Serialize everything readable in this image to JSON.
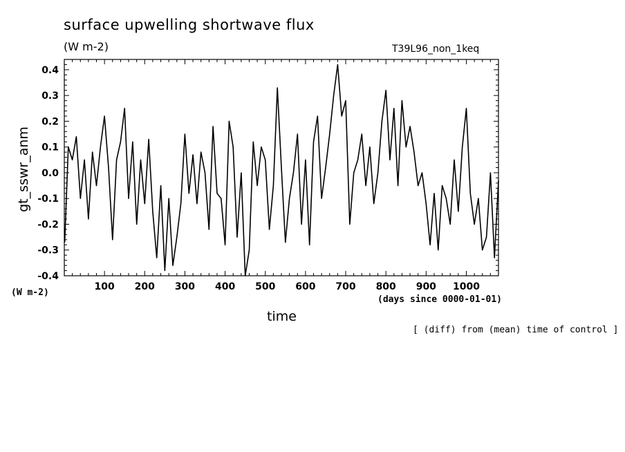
{
  "chart_data": {
    "type": "line",
    "title": "surface upwelling shortwave flux",
    "units": "(W m-2)",
    "experiment": "T39L96_non_1keq",
    "ylabel": "gt_sswr_anm",
    "y_unit_label": "(W m-2)",
    "xlabel": "time",
    "x_unit_label": "(days since 0000-01-01)",
    "note": "[ (diff) from (mean) time of control ]",
    "xlim": [
      0,
      1080
    ],
    "ylim": [
      -0.4,
      0.44
    ],
    "x_ticks": [
      100,
      200,
      300,
      400,
      500,
      600,
      700,
      800,
      900,
      1000
    ],
    "y_ticks": [
      -0.4,
      -0.3,
      -0.2,
      -0.1,
      0.0,
      0.1,
      0.2,
      0.3,
      0.4
    ],
    "y_tick_labels": [
      "-0.4",
      "-0.3",
      "-0.2",
      "-0.1",
      "0.0",
      "0.1",
      "0.2",
      "0.3",
      "0.4"
    ],
    "grid": false,
    "series": [
      {
        "x": [
          1,
          10,
          20,
          30,
          40,
          50,
          60,
          70,
          80,
          90,
          100,
          110,
          120,
          130,
          140,
          150,
          160,
          170,
          180,
          190,
          200,
          210,
          220,
          230,
          240,
          250,
          260,
          270,
          280,
          290,
          300,
          310,
          320,
          330,
          340,
          350,
          360,
          370,
          380,
          390,
          400,
          410,
          420,
          430,
          440,
          450,
          460,
          470,
          480,
          490,
          500,
          510,
          520,
          530,
          540,
          550,
          560,
          570,
          580,
          590,
          600,
          610,
          620,
          630,
          640,
          650,
          660,
          670,
          680,
          690,
          700,
          710,
          720,
          730,
          740,
          750,
          760,
          770,
          780,
          790,
          800,
          810,
          820,
          830,
          840,
          850,
          860,
          870,
          880,
          890,
          900,
          910,
          920,
          930,
          940,
          950,
          960,
          970,
          980,
          990,
          1000,
          1010,
          1020,
          1030,
          1040,
          1050,
          1060,
          1070,
          1080
        ],
        "y": [
          -0.27,
          0.1,
          0.05,
          0.14,
          -0.1,
          0.05,
          -0.18,
          0.08,
          -0.05,
          0.1,
          0.22,
          0.02,
          -0.26,
          0.05,
          0.12,
          0.25,
          -0.1,
          0.12,
          -0.2,
          0.05,
          -0.12,
          0.13,
          -0.15,
          -0.33,
          -0.05,
          -0.38,
          -0.1,
          -0.36,
          -0.25,
          -0.12,
          0.15,
          -0.08,
          0.07,
          -0.12,
          0.08,
          0.0,
          -0.22,
          0.18,
          -0.08,
          -0.1,
          -0.28,
          0.2,
          0.1,
          -0.25,
          0.0,
          -0.4,
          -0.3,
          0.12,
          -0.05,
          0.1,
          0.05,
          -0.22,
          -0.05,
          0.33,
          0.02,
          -0.27,
          -0.1,
          0.0,
          0.15,
          -0.2,
          0.05,
          -0.28,
          0.12,
          0.22,
          -0.1,
          0.02,
          0.15,
          0.3,
          0.42,
          0.22,
          0.28,
          -0.2,
          0.0,
          0.05,
          0.15,
          -0.05,
          0.1,
          -0.12,
          0.0,
          0.2,
          0.32,
          0.05,
          0.25,
          -0.05,
          0.28,
          0.1,
          0.18,
          0.08,
          -0.05,
          0.0,
          -0.12,
          -0.28,
          -0.08,
          -0.3,
          -0.05,
          -0.1,
          -0.2,
          0.05,
          -0.15,
          0.1,
          0.25,
          -0.08,
          -0.2,
          -0.1,
          -0.3,
          -0.25,
          0.0,
          -0.33,
          -0.03
        ]
      }
    ]
  }
}
